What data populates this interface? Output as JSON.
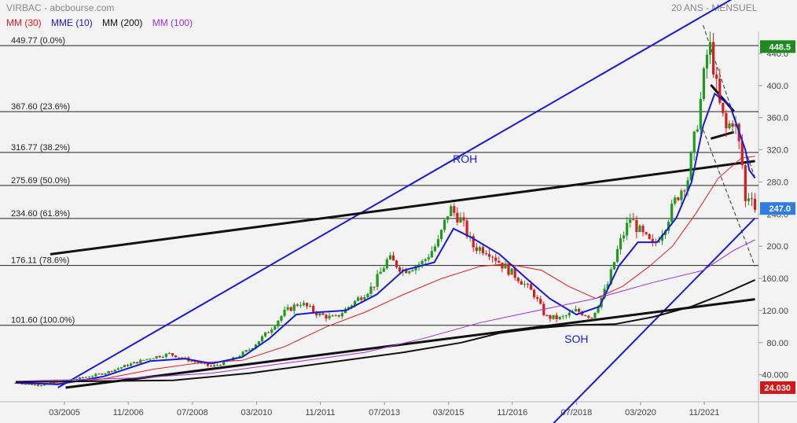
{
  "header": {
    "title": "VIRBAC - abcbourse.com",
    "period": "20 ANS - MENSUEL"
  },
  "legend": [
    {
      "label": "MM (30)",
      "color": "#e11c1c"
    },
    {
      "label": "MME (10)",
      "color": "#1a1ad6"
    },
    {
      "label": "MM (200)",
      "color": "#111111"
    },
    {
      "label": "MM (100)",
      "color": "#9b30d9"
    }
  ],
  "chart_data": {
    "type": "candlestick",
    "xlabel": "",
    "ylabel": "",
    "ylim": [
      24.03,
      460
    ],
    "x_range": [
      2003.9,
      2023.2
    ],
    "x_ticks": [
      {
        "label": "03/2005",
        "t": 2005.17
      },
      {
        "label": "11/2006",
        "t": 2006.83
      },
      {
        "label": "07/2008",
        "t": 2008.5
      },
      {
        "label": "03/2010",
        "t": 2010.17
      },
      {
        "label": "11/2011",
        "t": 2011.83
      },
      {
        "label": "07/2013",
        "t": 2013.5
      },
      {
        "label": "03/2015",
        "t": 2015.17
      },
      {
        "label": "11/2016",
        "t": 2016.83
      },
      {
        "label": "07/2018",
        "t": 2018.5
      },
      {
        "label": "03/2020",
        "t": 2020.17
      },
      {
        "label": "11/2021",
        "t": 2021.83
      }
    ],
    "y_ticks": [
      40,
      80,
      120,
      160,
      200,
      240,
      280,
      320,
      360,
      400,
      440
    ],
    "y_tick_labels": [
      "40.000",
      "80.00",
      "120.00",
      "160.00",
      "200.0",
      "240.0",
      "280.0",
      "320.0",
      "360.0",
      "400.0",
      "440.0"
    ],
    "fib_levels": [
      {
        "label": "449.77 (0.0%)",
        "value": 449.77
      },
      {
        "label": "367.60 (23.6%)",
        "value": 367.6
      },
      {
        "label": "316.77 (38.2%)",
        "value": 316.77
      },
      {
        "label": "275.69 (50.0%)",
        "value": 275.69
      },
      {
        "label": "234.60 (61.8%)",
        "value": 234.6
      },
      {
        "label": "176.11 (78.6%)",
        "value": 176.11
      },
      {
        "label": "101.60 (100.0%)",
        "value": 101.6
      }
    ],
    "price_tags": [
      {
        "label": "448.5",
        "value": 448.5,
        "color": "#1f8a1f"
      },
      {
        "label": "247.0",
        "value": 247.0,
        "color": "#2f7de0"
      },
      {
        "label": "24.030",
        "value": 24.03,
        "color": "#d21818"
      }
    ],
    "price_path": [
      [
        2003.9,
        30
      ],
      [
        2004.5,
        27
      ],
      [
        2005.0,
        31
      ],
      [
        2005.6,
        36
      ],
      [
        2006.2,
        42
      ],
      [
        2006.8,
        52
      ],
      [
        2007.4,
        61
      ],
      [
        2007.9,
        66
      ],
      [
        2008.5,
        57
      ],
      [
        2009.0,
        50
      ],
      [
        2009.5,
        58
      ],
      [
        2010.0,
        72
      ],
      [
        2010.5,
        95
      ],
      [
        2010.9,
        118
      ],
      [
        2011.3,
        130
      ],
      [
        2011.8,
        115
      ],
      [
        2012.2,
        110
      ],
      [
        2012.7,
        130
      ],
      [
        2013.2,
        150
      ],
      [
        2013.6,
        185
      ],
      [
        2014.0,
        170
      ],
      [
        2014.5,
        180
      ],
      [
        2014.9,
        205
      ],
      [
        2015.2,
        248
      ],
      [
        2015.5,
        232
      ],
      [
        2015.8,
        200
      ],
      [
        2016.2,
        195
      ],
      [
        2016.6,
        175
      ],
      [
        2017.0,
        160
      ],
      [
        2017.4,
        140
      ],
      [
        2017.7,
        112
      ],
      [
        2018.1,
        110
      ],
      [
        2018.5,
        120
      ],
      [
        2018.9,
        112
      ],
      [
        2019.3,
        150
      ],
      [
        2019.6,
        200
      ],
      [
        2019.9,
        235
      ],
      [
        2020.2,
        215
      ],
      [
        2020.5,
        200
      ],
      [
        2020.8,
        225
      ],
      [
        2021.1,
        260
      ],
      [
        2021.4,
        285
      ],
      [
        2021.7,
        370
      ],
      [
        2021.9,
        438
      ],
      [
        2022.0,
        448
      ],
      [
        2022.2,
        380
      ],
      [
        2022.4,
        345
      ],
      [
        2022.6,
        360
      ],
      [
        2022.8,
        310
      ],
      [
        2022.9,
        255
      ],
      [
        2023.05,
        270
      ],
      [
        2023.15,
        247
      ]
    ],
    "series": [
      {
        "name": "MM (30)",
        "color": "#e11c1c",
        "points": [
          [
            2003.9,
            30
          ],
          [
            2005.0,
            29
          ],
          [
            2006.2,
            35
          ],
          [
            2007.5,
            47
          ],
          [
            2008.7,
            55
          ],
          [
            2009.8,
            58
          ],
          [
            2010.9,
            75
          ],
          [
            2012.0,
            100
          ],
          [
            2013.0,
            118
          ],
          [
            2014.0,
            140
          ],
          [
            2015.0,
            160
          ],
          [
            2016.0,
            175
          ],
          [
            2016.7,
            178
          ],
          [
            2017.6,
            170
          ],
          [
            2018.3,
            150
          ],
          [
            2019.0,
            135
          ],
          [
            2019.7,
            150
          ],
          [
            2020.4,
            175
          ],
          [
            2021.0,
            200
          ],
          [
            2021.6,
            240
          ],
          [
            2022.2,
            285
          ],
          [
            2022.8,
            310
          ],
          [
            2023.15,
            312
          ]
        ]
      },
      {
        "name": "MME (10)",
        "color": "#1a1ad6",
        "points": [
          [
            2003.9,
            30
          ],
          [
            2005.0,
            28
          ],
          [
            2006.2,
            38
          ],
          [
            2007.4,
            57
          ],
          [
            2008.3,
            60
          ],
          [
            2009.0,
            54
          ],
          [
            2009.8,
            62
          ],
          [
            2010.5,
            85
          ],
          [
            2011.2,
            115
          ],
          [
            2011.8,
            118
          ],
          [
            2012.5,
            120
          ],
          [
            2013.3,
            140
          ],
          [
            2014.0,
            170
          ],
          [
            2014.8,
            180
          ],
          [
            2015.3,
            222
          ],
          [
            2015.8,
            210
          ],
          [
            2016.5,
            190
          ],
          [
            2017.2,
            160
          ],
          [
            2017.8,
            135
          ],
          [
            2018.5,
            115
          ],
          [
            2019.1,
            125
          ],
          [
            2019.6,
            175
          ],
          [
            2020.1,
            205
          ],
          [
            2020.6,
            205
          ],
          [
            2021.1,
            235
          ],
          [
            2021.5,
            280
          ],
          [
            2021.8,
            350
          ],
          [
            2022.1,
            390
          ],
          [
            2022.5,
            375
          ],
          [
            2022.9,
            320
          ],
          [
            2023.0,
            295
          ],
          [
            2023.15,
            285
          ]
        ]
      },
      {
        "name": "MM (100)",
        "color": "#9b30d9",
        "points": [
          [
            2003.9,
            32
          ],
          [
            2007.0,
            36
          ],
          [
            2009.0,
            42
          ],
          [
            2011.0,
            55
          ],
          [
            2013.0,
            68
          ],
          [
            2014.5,
            85
          ],
          [
            2016.0,
            105
          ],
          [
            2017.5,
            120
          ],
          [
            2019.0,
            135
          ],
          [
            2020.5,
            155
          ],
          [
            2021.8,
            170
          ],
          [
            2022.6,
            195
          ],
          [
            2023.15,
            208
          ]
        ]
      },
      {
        "name": "MM (200)",
        "color": "#111111",
        "points": [
          [
            2003.9,
            31
          ],
          [
            2008.0,
            33
          ],
          [
            2010.0,
            42
          ],
          [
            2012.0,
            55
          ],
          [
            2014.0,
            68
          ],
          [
            2015.5,
            80
          ],
          [
            2016.5,
            92
          ],
          [
            2017.5,
            98
          ],
          [
            2018.5,
            102
          ],
          [
            2019.5,
            103
          ],
          [
            2020.5,
            112
          ],
          [
            2021.5,
            125
          ],
          [
            2022.3,
            140
          ],
          [
            2023.15,
            158
          ]
        ]
      }
    ],
    "trendlines": [
      {
        "color": "#1a1ad6",
        "width": 2,
        "from": [
          2005.0,
          24
        ],
        "to": [
          2023.0,
          520
        ]
      },
      {
        "color": "#1a1ad6",
        "width": 2,
        "from": [
          2017.5,
          -40
        ],
        "to": [
          2023.15,
          235
        ]
      },
      {
        "color": "#111111",
        "width": 3,
        "from": [
          2004.8,
          190
        ],
        "to": [
          2023.15,
          306
        ]
      },
      {
        "color": "#111111",
        "width": 3,
        "from": [
          2005.2,
          24
        ],
        "to": [
          2023.15,
          134
        ]
      },
      {
        "color": "#111111",
        "width": 3,
        "from": [
          2022.0,
          401
        ],
        "to": [
          2022.6,
          368
        ]
      },
      {
        "color": "#111111",
        "width": 3,
        "from": [
          2022.0,
          334
        ],
        "to": [
          2022.6,
          342
        ]
      }
    ],
    "dashed_lines": [
      {
        "from": [
          2021.8,
          475
        ],
        "to": [
          2023.15,
          285
        ]
      },
      {
        "from": [
          2021.8,
          345
        ],
        "to": [
          2023.15,
          175
        ]
      }
    ],
    "annotations": [
      {
        "text": "ROH",
        "x": 2015.6,
        "y": 304,
        "color": "#1a1ad6"
      },
      {
        "text": "SOH",
        "x": 2018.5,
        "y": 80,
        "color": "#1a1ad6"
      }
    ]
  }
}
